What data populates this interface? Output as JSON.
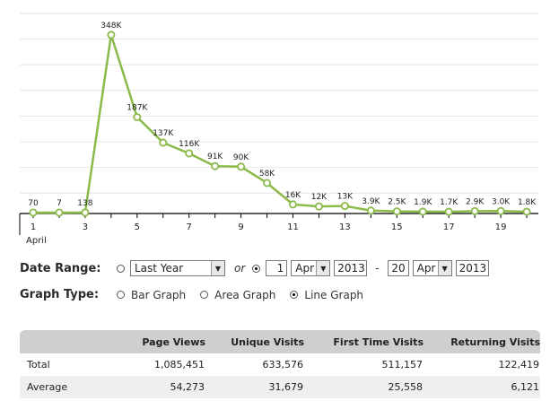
{
  "chart_data": {
    "type": "line",
    "x": [
      1,
      2,
      3,
      4,
      5,
      6,
      7,
      8,
      9,
      10,
      11,
      12,
      13,
      14,
      15,
      16,
      17,
      18,
      19,
      20
    ],
    "values": [
      70,
      7,
      138,
      348000,
      187000,
      137000,
      116000,
      91000,
      90000,
      58000,
      16000,
      12000,
      13000,
      3900,
      2500,
      1900,
      1700,
      2900,
      3000,
      1800
    ],
    "data_labels": [
      "70",
      "7",
      "138",
      "348K",
      "187K",
      "137K",
      "116K",
      "91K",
      "90K",
      "58K",
      "16K",
      "12K",
      "13K",
      "3.9K",
      "2.5K",
      "1.9K",
      "1.7K",
      "2.9K",
      "3.0K",
      "1.8K"
    ],
    "tick_labels": [
      "1",
      "3",
      "5",
      "7",
      "9",
      "11",
      "13",
      "15",
      "17",
      "19"
    ],
    "month_label": "April",
    "ylim": [
      0,
      390000
    ],
    "grid": true,
    "line_color": "#8cba4a"
  },
  "date_range": {
    "label": "Date Range:",
    "preset": "Last Year",
    "or_label": "or",
    "from_day": "1",
    "from_month": "Apr",
    "from_year": "2013",
    "separator": "-",
    "to_day": "20",
    "to_month": "Apr",
    "to_year": "2013"
  },
  "graph_type": {
    "label": "Graph Type:",
    "options": [
      "Bar Graph",
      "Area Graph",
      "Line Graph"
    ],
    "selected": "Line Graph"
  },
  "stats": {
    "headers": [
      "",
      "Page Views",
      "Unique Visits",
      "First Time Visits",
      "Returning Visits"
    ],
    "rows": [
      [
        "Total",
        "1,085,451",
        "633,576",
        "511,157",
        "122,419"
      ],
      [
        "Average",
        "54,273",
        "31,679",
        "25,558",
        "6,121"
      ]
    ]
  }
}
